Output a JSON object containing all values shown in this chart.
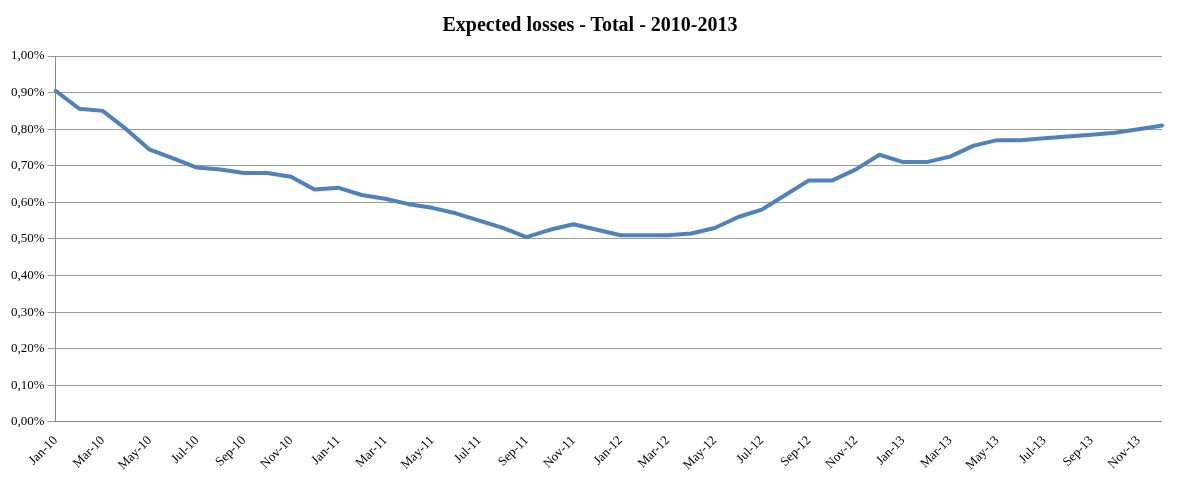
{
  "chart_data": {
    "type": "line",
    "title": "Expected losses - Total - 2010-2013",
    "categories": [
      "Jan-10",
      null,
      "Mar-10",
      null,
      "May-10",
      null,
      "Jul-10",
      null,
      "Sep-10",
      null,
      "Nov-10",
      null,
      "Jan-11",
      null,
      "Mar-11",
      null,
      "May-11",
      null,
      "Jul-11",
      null,
      "Sep-11",
      null,
      "Nov-11",
      null,
      "Jan-12",
      null,
      "Mar-12",
      null,
      "May-12",
      null,
      "Jul-12",
      null,
      "Sep-12",
      null,
      "Nov-12",
      null,
      "Jan-13",
      null,
      "Mar-13",
      null,
      "May-13",
      null,
      "Jul-13",
      null,
      "Sep-13",
      null,
      "Nov-13",
      null
    ],
    "series": [
      {
        "color": "#4f81bd",
        "values": [
          0.905,
          0.856,
          0.85,
          0.8,
          0.744,
          0.72,
          0.695,
          0.69,
          0.68,
          0.68,
          0.67,
          0.635,
          0.64,
          0.62,
          0.61,
          0.595,
          0.585,
          0.57,
          0.55,
          0.53,
          0.505,
          0.525,
          0.54,
          0.525,
          0.51,
          0.51,
          0.51,
          0.515,
          0.53,
          0.56,
          0.58,
          0.62,
          0.66,
          0.66,
          0.69,
          0.73,
          0.71,
          0.71,
          0.725,
          0.755,
          0.77,
          0.77,
          0.775,
          0.78,
          0.785,
          0.79,
          0.8,
          0.81
        ]
      }
    ],
    "ylim": [
      0,
      1
    ],
    "yticks": [
      {
        "value": 0,
        "label": "0,00%"
      },
      {
        "value": 0.1,
        "label": "0,10%"
      },
      {
        "value": 0.2,
        "label": "0,20%"
      },
      {
        "value": 0.3,
        "label": "0,30%"
      },
      {
        "value": 0.4,
        "label": "0,40%"
      },
      {
        "value": 0.5,
        "label": "0,50%"
      },
      {
        "value": 0.6,
        "label": "0,60%"
      },
      {
        "value": 0.7,
        "label": "0,70%"
      },
      {
        "value": 0.8,
        "label": "0,80%"
      },
      {
        "value": 0.9,
        "label": "0,90%"
      },
      {
        "value": 1,
        "label": "1,00%"
      }
    ],
    "grid": "y",
    "legend": false,
    "marker": "none",
    "line_style": "solid"
  }
}
